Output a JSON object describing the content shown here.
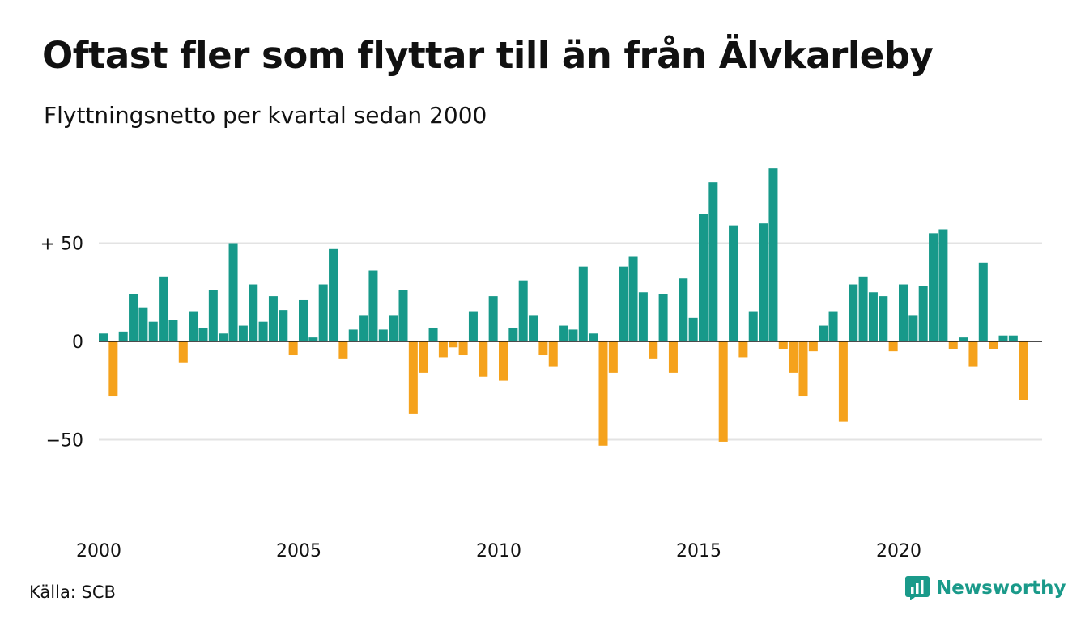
{
  "title": "Oftast fler som flyttar till än från Älvkarleby",
  "subtitle": "Flyttningsnetto per kvartal sedan 2000",
  "source": "Källa: SCB",
  "brand": "Newsworthy",
  "chart_data": {
    "type": "bar",
    "x_start": "2000 Q1",
    "frequency": "quarterly",
    "values": [
      4,
      -28,
      5,
      24,
      17,
      10,
      33,
      11,
      -11,
      15,
      7,
      26,
      4,
      50,
      8,
      29,
      10,
      23,
      16,
      -7,
      21,
      2,
      29,
      47,
      -9,
      6,
      13,
      36,
      6,
      13,
      26,
      -37,
      -16,
      7,
      -8,
      -3,
      -7,
      15,
      -18,
      23,
      -20,
      7,
      31,
      13,
      -7,
      -13,
      8,
      6,
      38,
      4,
      -53,
      -16,
      38,
      43,
      25,
      -9,
      24,
      -16,
      32,
      12,
      65,
      81,
      -51,
      59,
      -8,
      15,
      60,
      88,
      -4,
      -16,
      -28,
      -5,
      8,
      15,
      -41,
      29,
      33,
      25,
      23,
      -5,
      29,
      13,
      28,
      55,
      57,
      -4,
      2,
      -13,
      40,
      -4,
      3,
      3,
      -30
    ],
    "y_ticks": [
      {
        "value": 50,
        "label": "+ 50"
      },
      {
        "value": 0,
        "label": "0"
      },
      {
        "value": -50,
        "label": "−50"
      }
    ],
    "x_ticks": [
      "2000",
      "2005",
      "2010",
      "2015",
      "2020"
    ],
    "ylim": [
      -90,
      95
    ],
    "grid": true,
    "colors": {
      "positive": "#17998a",
      "negative": "#f5a21c",
      "grid": "#e3e3e3"
    }
  }
}
